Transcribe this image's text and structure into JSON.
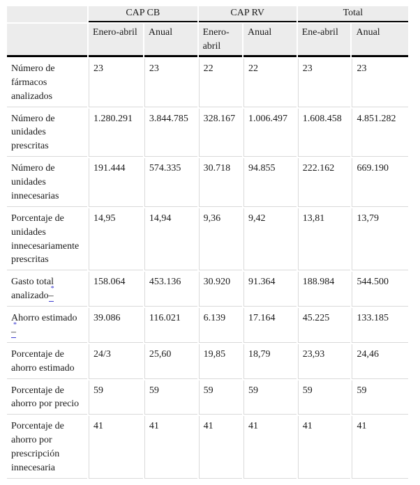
{
  "table": {
    "col_groups": [
      {
        "label": "CAP CB"
      },
      {
        "label": "CAP RV"
      },
      {
        "label": "Total"
      }
    ],
    "sub_headers": [
      "Enero-abril",
      "Anual",
      "Enero-abril",
      "Anual",
      "Ene-abril",
      "Anual"
    ],
    "footnote_dash": "–",
    "rows": [
      {
        "label": "Número de fármacos analizados",
        "footnote": "",
        "values": [
          "23",
          "23",
          "22",
          "22",
          "23",
          "23"
        ]
      },
      {
        "label": "Número de unidades prescritas",
        "footnote": "",
        "values": [
          "1.280.291",
          "3.844.785",
          "328.167",
          "1.006.497",
          "1.608.458",
          "4.851.282"
        ]
      },
      {
        "label": "Número de unidades innecesarias",
        "footnote": "",
        "values": [
          "191.444",
          "574.335",
          "30.718",
          "94.855",
          "222.162",
          "669.190"
        ]
      },
      {
        "label": "Porcentaje de unidades innecesariamente prescritas",
        "footnote": "",
        "values": [
          "14,95",
          "14,94",
          "9,36",
          "9,42",
          "13,81",
          "13,79"
        ]
      },
      {
        "label": "Gasto total analizado",
        "footnote": "*",
        "values": [
          "158.064",
          "453.136",
          "30.920",
          "91.364",
          "188.984",
          "544.500"
        ]
      },
      {
        "label": "Ahorro estimado",
        "footnote": "*",
        "values": [
          "39.086",
          "116.021",
          "6.139",
          "17.164",
          "45.225",
          "133.185"
        ]
      },
      {
        "label": "Porcentaje de ahorro estimado",
        "footnote": "",
        "values": [
          "24/3",
          "25,60",
          "19,85",
          "18,79",
          "23,93",
          "24,46"
        ]
      },
      {
        "label": "Porcentaje de ahorro por precio",
        "footnote": "",
        "values": [
          "59",
          "59",
          "59",
          "59",
          "59",
          "59"
        ]
      },
      {
        "label": "Porcentaje de ahorro por prescripción innecesaria",
        "footnote": "",
        "values": [
          "41",
          "41",
          "41",
          "41",
          "41",
          "41"
        ]
      }
    ]
  },
  "colors": {
    "header_background": "#ececec",
    "heavy_rule": "#000000",
    "light_rule": "#d9d9d9",
    "footnote_accent": "#3a3ad0",
    "text": "#1b1b1b"
  }
}
